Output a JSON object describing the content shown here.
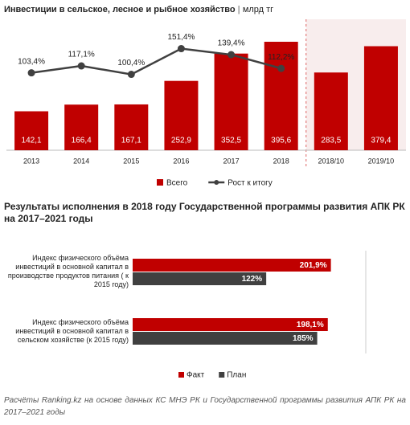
{
  "chart_data": [
    {
      "type": "bar_line",
      "title": "Инвестиции в сельское, лесное и рыбное хозяйство",
      "subtitle": "млрд тг",
      "categories": [
        "2013",
        "2014",
        "2015",
        "2016",
        "2017",
        "2018",
        "2018/10",
        "2019/10"
      ],
      "series": [
        {
          "name": "Всего",
          "type": "bar",
          "color": "#c00000",
          "values": [
            142.1,
            166.4,
            167.1,
            252.9,
            352.5,
            395.6,
            283.5,
            379.4
          ],
          "value_labels": [
            "142,1",
            "166,4",
            "167,1",
            "252,9",
            "352,5",
            "395,6",
            "283,5",
            "379,4"
          ]
        },
        {
          "name": "Рост к итогу",
          "type": "line",
          "axis": "y2",
          "color": "#404040",
          "values": [
            103.4,
            117.1,
            100.4,
            151.4,
            139.4,
            112.2,
            null,
            null
          ],
          "value_labels": [
            "103,4%",
            "117,1%",
            "100,4%",
            "151,4%",
            "139,4%",
            "112,2%",
            null,
            null
          ]
        }
      ],
      "ylim": [
        0,
        460
      ],
      "y2lim": [
        -50,
        200
      ],
      "legend": "bottom"
    },
    {
      "type": "hbar",
      "title": "Результаты исполнения в 2018 году Государственной программы развития АПК РК на 2017–2021 годы",
      "categories": [
        "Индекс физического объёма инвестиций в основной капитал в производстве продуктов питания ( к 2015 году)",
        "Индекс физического объёма инвестиций в основной капитал в сельском хозяйстве (к 2015 году)"
      ],
      "series": [
        {
          "name": "Факт",
          "color": "#c00000",
          "values": [
            201.9,
            198.1
          ],
          "value_labels": [
            "201,9%",
            "198,1%"
          ]
        },
        {
          "name": "План",
          "color": "#404040",
          "values": [
            122,
            185
          ],
          "value_labels": [
            "122%",
            "185%"
          ]
        }
      ],
      "xlim": [
        -43,
        245
      ],
      "legend": "bottom"
    }
  ],
  "source": "Расчёты Ranking.kz на основе данных КС МНЭ РК и Государственной программы развития АПК РК на 2017–2021 годы"
}
